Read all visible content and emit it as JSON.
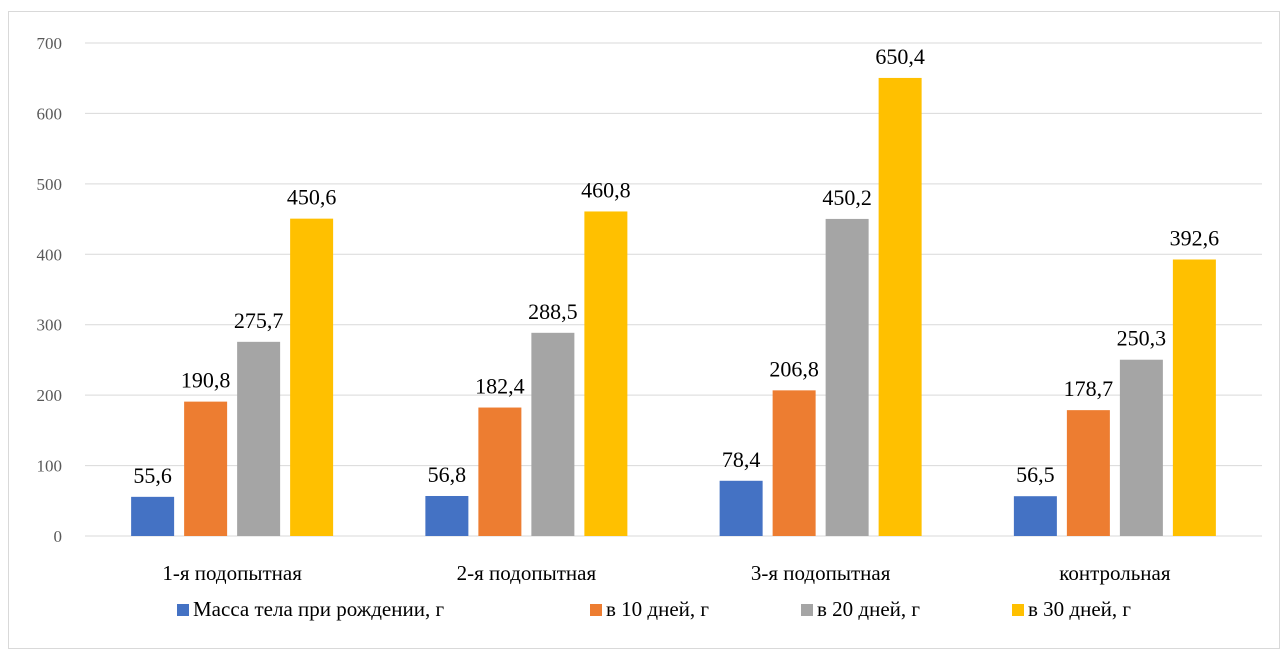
{
  "chart_data": {
    "type": "bar",
    "title": "",
    "xlabel": "",
    "ylabel": "",
    "categories": [
      "1-я подопытная",
      "2-я подопытная",
      "3-я подопытная",
      "контрольная"
    ],
    "series": [
      {
        "name": "Масса тела при рождении, г",
        "color": "#4472c4",
        "values": [
          55.6,
          56.8,
          78.4,
          56.5
        ],
        "labels": [
          "55,6",
          "56,8",
          "78,4",
          "56,5"
        ]
      },
      {
        "name": "в 10 дней, г",
        "color": "#ed7d31",
        "values": [
          190.8,
          182.4,
          206.8,
          178.7
        ],
        "labels": [
          "190,8",
          "182,4",
          "206,8",
          "178,7"
        ]
      },
      {
        "name": "в 20 дней, г",
        "color": "#a5a5a5",
        "values": [
          275.7,
          288.5,
          450.2,
          250.3
        ],
        "labels": [
          "275,7",
          "288,5",
          "450,2",
          "250,3"
        ]
      },
      {
        "name": "в 30 дней, г",
        "color": "#ffc000",
        "values": [
          450.6,
          460.8,
          650.4,
          392.6
        ],
        "labels": [
          "450,6",
          "460,8",
          "650,4",
          "392,6"
        ]
      }
    ],
    "ylim": [
      0,
      700
    ],
    "yticks": [
      0,
      100,
      200,
      300,
      400,
      500,
      600,
      700
    ],
    "grid": true,
    "legend_position": "bottom"
  }
}
